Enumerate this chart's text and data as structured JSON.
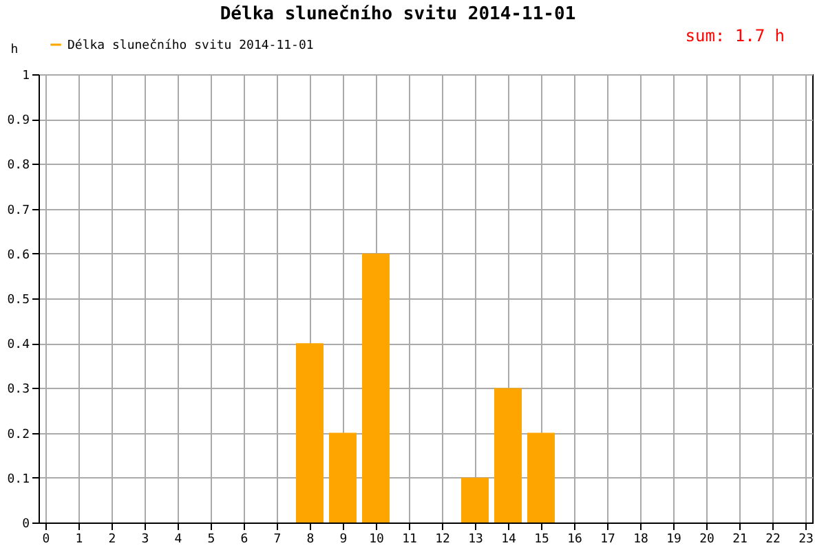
{
  "chart_data": {
    "type": "bar",
    "title": "Délka slunečního svitu 2014-11-01",
    "ylabel": "h",
    "x": [
      8,
      9,
      10,
      13,
      14,
      15
    ],
    "series": [
      {
        "name": "Délka slunečního svitu 2014-11-01",
        "color": "#ffa500",
        "values": [
          0.4,
          0.2,
          0.6,
          0.1,
          0.3,
          0.2
        ]
      }
    ],
    "xlim": [
      0,
      23
    ],
    "xticks": [
      0,
      1,
      2,
      3,
      4,
      5,
      6,
      7,
      8,
      9,
      10,
      11,
      12,
      13,
      14,
      15,
      16,
      17,
      18,
      19,
      20,
      21,
      22,
      23
    ],
    "ylim": [
      0,
      1
    ],
    "yticks": [
      0,
      0.1,
      0.2,
      0.3,
      0.4,
      0.5,
      0.6,
      0.7,
      0.8,
      0.9,
      1
    ],
    "annotations": [
      "sum: 1.7 h"
    ],
    "grid": true,
    "legend": "top left"
  }
}
